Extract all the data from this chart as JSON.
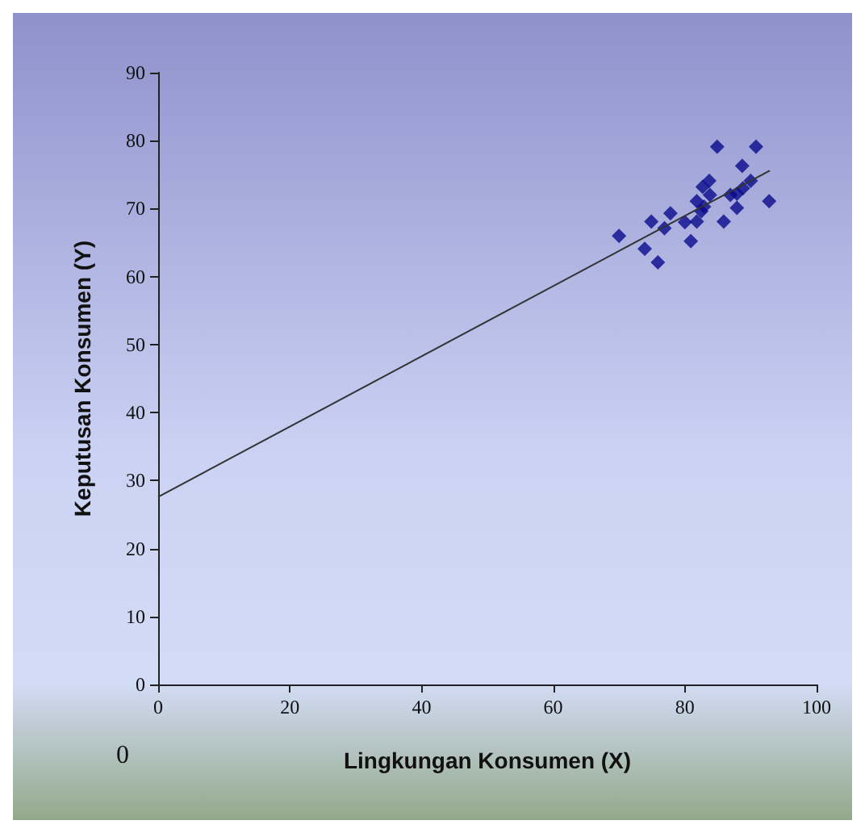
{
  "chart_data": {
    "type": "scatter",
    "xlabel": "Lingkungan Konsumen (X)",
    "ylabel": "Keputusan Konsumen (Y)",
    "xlim": [
      0,
      100
    ],
    "xticks": [
      0,
      20,
      40,
      60,
      80,
      100
    ],
    "ylim": [
      0,
      90
    ],
    "yticks": [
      0,
      10,
      20,
      30,
      40,
      50,
      60,
      70,
      80,
      90
    ],
    "grid": false,
    "marker": "diamond",
    "annotations": [
      "0"
    ],
    "series": [
      {
        "color": "#0a0a8c",
        "x": [
          70,
          73.9,
          74.9,
          75.9,
          76.9,
          77.8,
          80,
          80.9,
          81.8,
          81.8,
          82.5,
          82.9,
          82.7,
          83.7,
          83.8,
          85.9,
          86.9,
          87.9,
          87.9,
          88.8,
          90,
          92.8,
          84.9,
          90.8,
          88.7
        ],
        "values": [
          66,
          64.1,
          68.1,
          62.1,
          67.1,
          69.3,
          68,
          65.2,
          68.1,
          71.1,
          69.6,
          70.3,
          73.2,
          74.1,
          72,
          68.1,
          72,
          70.1,
          72.2,
          73,
          74.1,
          71.1,
          79.1,
          79.1,
          76.3
        ]
      },
      {
        "type": "line",
        "color": "#333333",
        "marker": "none",
        "line_style": "solid",
        "x": [
          0,
          92.9
        ],
        "values": [
          27.6,
          75.6
        ]
      }
    ]
  }
}
